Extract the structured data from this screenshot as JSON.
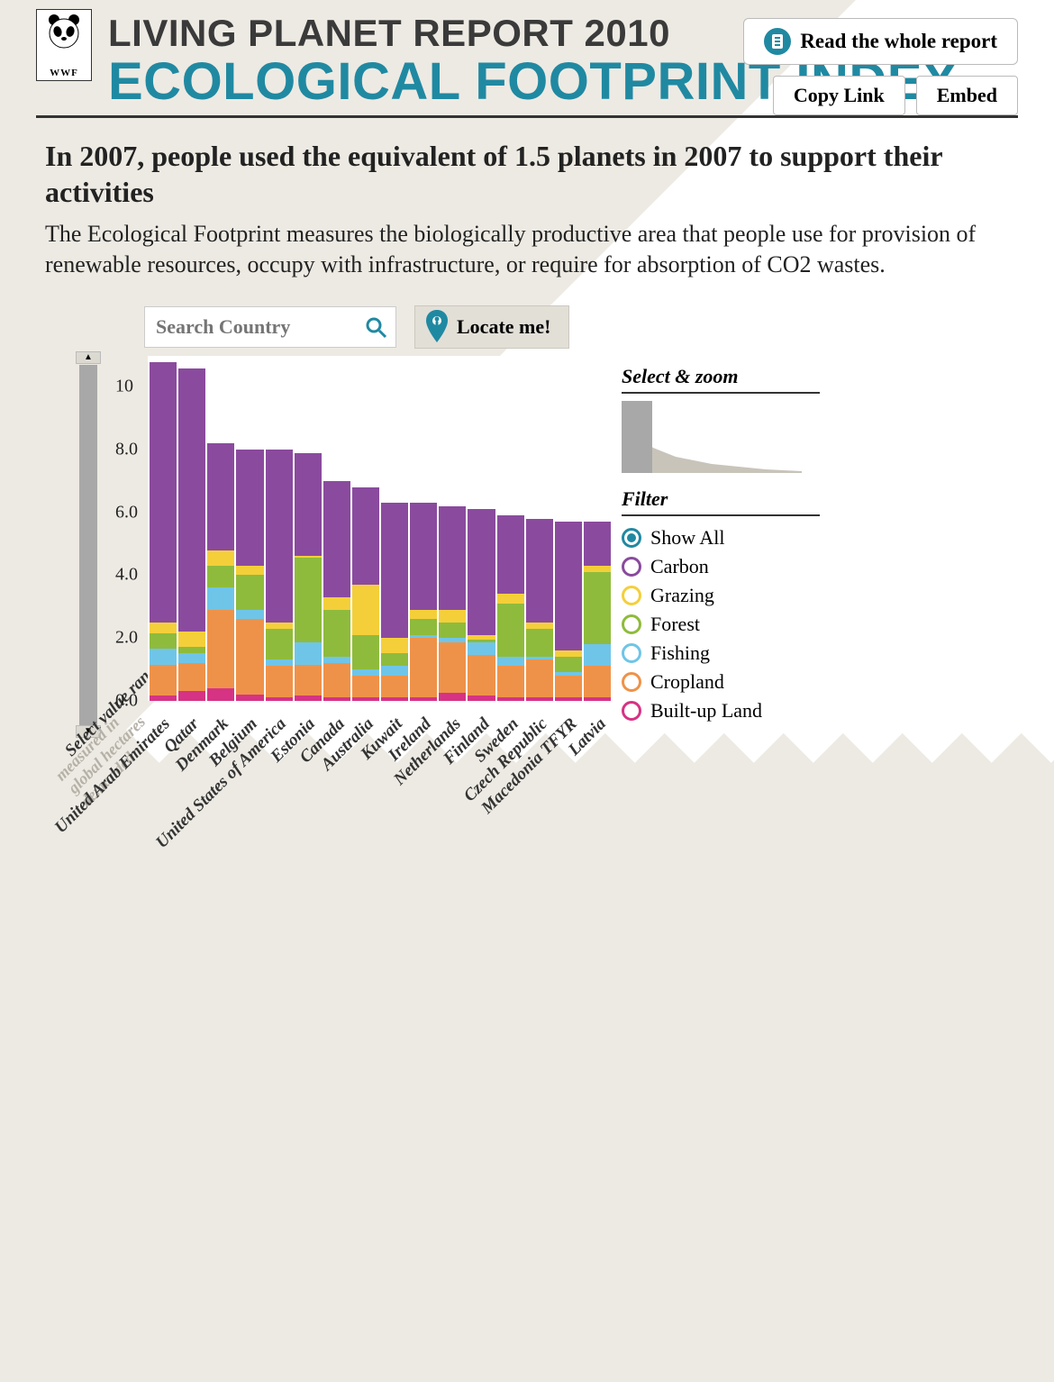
{
  "header": {
    "logo_text": "WWF",
    "report_title": "LIVING PLANET REPORT 2010",
    "index_title": "ECOLOGICAL FOOTPRINT INDEX",
    "read_report": "Read the whole report",
    "copy_link": "Copy Link",
    "embed": "Embed"
  },
  "intro": {
    "headline": "In 2007, people used the equivalent of 1.5 planets in 2007 to support their activities",
    "body": "The Ecological Footprint measures the biologically productive area that people use for provision of renewable resources, occupy with infrastructure, or require for absorption of CO2 wastes."
  },
  "toolbar": {
    "search_placeholder": "Search Country",
    "locate": "Locate me!"
  },
  "chart": {
    "type": "stacked-bar",
    "ylim": [
      0,
      11
    ],
    "yticks": [
      "10",
      "8.0",
      "6.0",
      "4.0",
      "2.0",
      "0.0"
    ],
    "ytick_values": [
      10,
      8,
      6,
      4,
      2,
      0
    ],
    "y_label": "Select value range",
    "y_sublabel": "measured in\nglobal hectares\ndemanded",
    "background": "#ffffff",
    "series_order": [
      "built",
      "cropland",
      "fishing",
      "forest",
      "grazing",
      "carbon"
    ],
    "colors": {
      "carbon": "#8a4b9e",
      "grazing": "#f4cf3a",
      "forest": "#8fbb3c",
      "fishing": "#6fc5e8",
      "cropland": "#ef9249",
      "built": "#d63384",
      "show_all": "#2089a2"
    },
    "countries": [
      {
        "name": "United Arab Emirates",
        "stack": {
          "built": 0.15,
          "cropland": 1.0,
          "fishing": 0.5,
          "forest": 0.5,
          "grazing": 0.35,
          "carbon": 8.3
        }
      },
      {
        "name": "Qatar",
        "stack": {
          "built": 0.3,
          "cropland": 0.9,
          "fishing": 0.3,
          "forest": 0.2,
          "grazing": 0.5,
          "carbon": 8.4
        }
      },
      {
        "name": "Denmark",
        "stack": {
          "built": 0.4,
          "cropland": 2.5,
          "fishing": 0.7,
          "forest": 0.7,
          "grazing": 0.5,
          "carbon": 3.4
        }
      },
      {
        "name": "Belgium",
        "stack": {
          "built": 0.2,
          "cropland": 2.4,
          "fishing": 0.3,
          "forest": 1.1,
          "grazing": 0.3,
          "carbon": 3.7
        }
      },
      {
        "name": "United States of America",
        "stack": {
          "built": 0.1,
          "cropland": 1.0,
          "fishing": 0.2,
          "forest": 1.0,
          "grazing": 0.2,
          "carbon": 5.5
        }
      },
      {
        "name": "Estonia",
        "stack": {
          "built": 0.15,
          "cropland": 1.0,
          "fishing": 0.7,
          "forest": 2.7,
          "grazing": 0.05,
          "carbon": 3.3
        }
      },
      {
        "name": "Canada",
        "stack": {
          "built": 0.1,
          "cropland": 1.1,
          "fishing": 0.2,
          "forest": 1.5,
          "grazing": 0.4,
          "carbon": 3.7
        }
      },
      {
        "name": "Australia",
        "stack": {
          "built": 0.1,
          "cropland": 0.7,
          "fishing": 0.2,
          "forest": 1.1,
          "grazing": 1.6,
          "carbon": 3.1
        }
      },
      {
        "name": "Kuwait",
        "stack": {
          "built": 0.1,
          "cropland": 0.7,
          "fishing": 0.3,
          "forest": 0.4,
          "grazing": 0.5,
          "carbon": 4.3
        }
      },
      {
        "name": "Ireland",
        "stack": {
          "built": 0.1,
          "cropland": 1.9,
          "fishing": 0.1,
          "forest": 0.5,
          "grazing": 0.3,
          "carbon": 3.4
        }
      },
      {
        "name": "Netherlands",
        "stack": {
          "built": 0.25,
          "cropland": 1.6,
          "fishing": 0.15,
          "forest": 0.5,
          "grazing": 0.4,
          "carbon": 3.3
        }
      },
      {
        "name": "Finland",
        "stack": {
          "built": 0.15,
          "cropland": 1.3,
          "fishing": 0.4,
          "forest": 0.1,
          "grazing": 0.15,
          "carbon": 4.0
        }
      },
      {
        "name": "Sweden",
        "stack": {
          "built": 0.1,
          "cropland": 1.0,
          "fishing": 0.3,
          "forest": 1.7,
          "grazing": 0.3,
          "carbon": 2.5
        }
      },
      {
        "name": "Czech Republic",
        "stack": {
          "built": 0.1,
          "cropland": 1.2,
          "fishing": 0.1,
          "forest": 0.9,
          "grazing": 0.2,
          "carbon": 3.3
        }
      },
      {
        "name": "Macedonia TFYR",
        "stack": {
          "built": 0.1,
          "cropland": 0.7,
          "fishing": 0.1,
          "forest": 0.5,
          "grazing": 0.2,
          "carbon": 4.1
        }
      },
      {
        "name": "Latvia",
        "stack": {
          "built": 0.1,
          "cropland": 1.0,
          "fishing": 0.7,
          "forest": 2.3,
          "grazing": 0.2,
          "carbon": 1.4
        }
      }
    ]
  },
  "sidebar": {
    "zoom_title": "Select & zoom",
    "filter_title": "Filter",
    "filters": [
      {
        "key": "show_all",
        "label": "Show All",
        "selected": true
      },
      {
        "key": "carbon",
        "label": "Carbon",
        "selected": false
      },
      {
        "key": "grazing",
        "label": "Grazing",
        "selected": false
      },
      {
        "key": "forest",
        "label": "Forest",
        "selected": false
      },
      {
        "key": "fishing",
        "label": "Fishing",
        "selected": false
      },
      {
        "key": "cropland",
        "label": "Cropland",
        "selected": false
      },
      {
        "key": "built",
        "label": "Built-up Land",
        "selected": false
      }
    ]
  }
}
